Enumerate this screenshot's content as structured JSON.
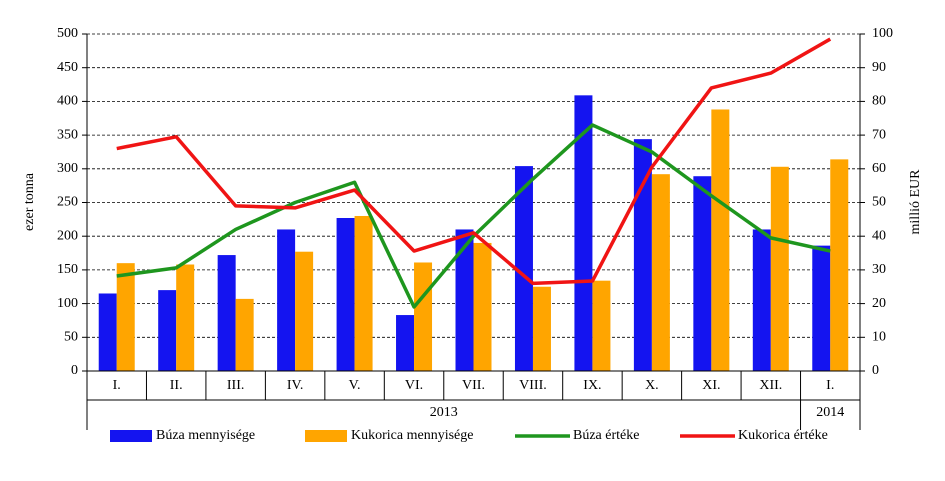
{
  "chart_data": {
    "type": "bar-line",
    "categories": [
      "I.",
      "II.",
      "III.",
      "IV.",
      "V.",
      "VI.",
      "VII.",
      "VIII.",
      "IX.",
      "X.",
      "XI.",
      "XII.",
      "I."
    ],
    "groups": [
      {
        "label": "2013",
        "count": 12
      },
      {
        "label": "2014",
        "count": 1
      }
    ],
    "ylabel": "ezer tonna",
    "y2label": "millió  EUR",
    "ylim": [
      0,
      500
    ],
    "yticks": [
      0,
      50,
      100,
      150,
      200,
      250,
      300,
      350,
      400,
      450,
      500
    ],
    "y2lim": [
      0,
      100
    ],
    "y2ticks": [
      0,
      10,
      20,
      30,
      40,
      50,
      60,
      70,
      80,
      90,
      100
    ],
    "grid": true,
    "legend": "bottom",
    "series": [
      {
        "name": "Búza mennyisége",
        "type": "bar",
        "color": "#1414f0",
        "values": [
          115,
          120,
          172,
          210,
          227,
          83,
          210,
          304,
          409,
          344,
          289,
          210,
          186
        ]
      },
      {
        "name": "Kukorica mennyisége",
        "type": "bar",
        "color": "#ffa500",
        "values": [
          160,
          158,
          107,
          177,
          230,
          161,
          190,
          125,
          134,
          292,
          388,
          303,
          314
        ]
      },
      {
        "name": "Búza értéke",
        "type": "line",
        "axis": "y2",
        "color": "#1e961e",
        "values": [
          28.2,
          30.6,
          42,
          50,
          56,
          19,
          40,
          57,
          73,
          65,
          52,
          39.5,
          35.6
        ]
      },
      {
        "name": "Kukorica értéke",
        "type": "line",
        "axis": "y2",
        "color": "#f01414",
        "values": [
          66,
          69.5,
          49,
          48.4,
          53.7,
          35.6,
          41,
          26,
          26.7,
          60.5,
          84,
          88.4,
          98.5
        ]
      }
    ]
  }
}
